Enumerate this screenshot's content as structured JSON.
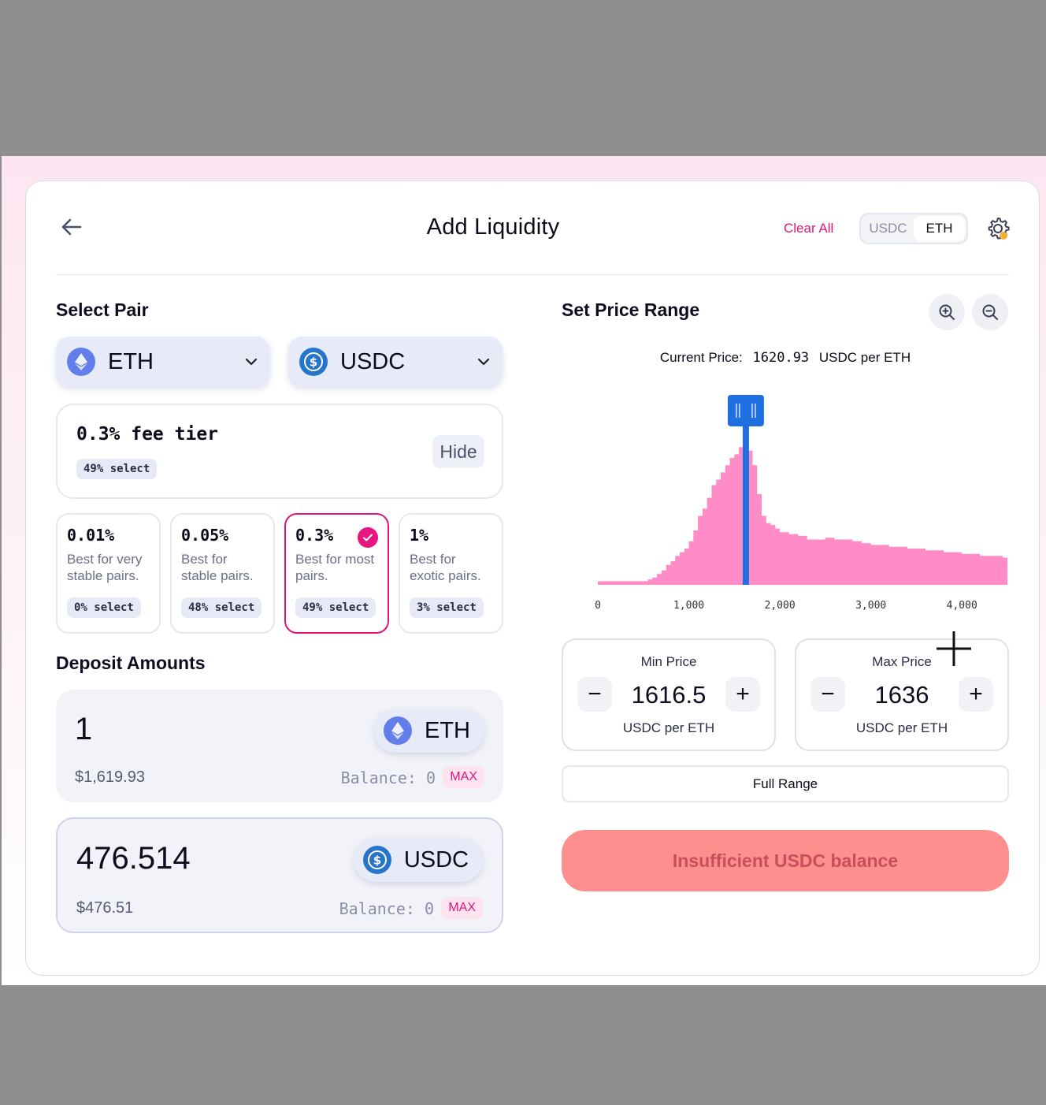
{
  "header": {
    "title": "Add Liquidity",
    "clear_all": "Clear All",
    "denomination": {
      "options": [
        "USDC",
        "ETH"
      ],
      "selected": "ETH"
    }
  },
  "pair": {
    "heading": "Select Pair",
    "token_a": "ETH",
    "token_b": "USDC"
  },
  "fee": {
    "selected_label": "0.3% fee tier",
    "selected_pill": "49% select",
    "hide_label": "Hide",
    "tiers": [
      {
        "pct": "0.01%",
        "desc": "Best for very stable pairs.",
        "pill": "0% select",
        "selected": false
      },
      {
        "pct": "0.05%",
        "desc": "Best for stable pairs.",
        "pill": "48% select",
        "selected": false
      },
      {
        "pct": "0.3%",
        "desc": "Best for most pairs.",
        "pill": "49% select",
        "selected": true
      },
      {
        "pct": "1%",
        "desc": "Best for exotic pairs.",
        "pill": "3% select",
        "selected": false
      }
    ]
  },
  "deposit": {
    "heading": "Deposit Amounts",
    "eth": {
      "amount": "1",
      "usd": "$1,619.93",
      "balance": "Balance: 0",
      "max": "MAX",
      "token": "ETH"
    },
    "usdc": {
      "amount": "476.514",
      "usd": "$476.51",
      "balance": "Balance: 0",
      "max": "MAX",
      "token": "USDC"
    }
  },
  "range": {
    "heading": "Set Price Range",
    "current_price_label": "Current Price:",
    "current_price": "1620.93",
    "current_price_unit": "USDC per ETH",
    "min": {
      "label": "Min Price",
      "value": "1616.5",
      "unit": "USDC per ETH",
      "minus": "−",
      "plus": "+"
    },
    "max": {
      "label": "Max Price",
      "value": "1636",
      "unit": "USDC per ETH",
      "minus": "−",
      "plus": "+"
    },
    "full_range": "Full Range",
    "cta": "Insufficient USDC balance"
  },
  "colors": {
    "accent": "#e0157a",
    "histogram": "#ff8cc6",
    "range_handle": "#1f6fe0",
    "cta_bg": "#fe8f8f",
    "eth": "#627eea",
    "usdc": "#2775ca"
  },
  "chart_data": {
    "type": "area",
    "x_ticks": [
      "0",
      "1,000",
      "2,000",
      "3,000",
      "4,000"
    ],
    "xlim": [
      0,
      4500
    ],
    "x": [
      0,
      100,
      200,
      300,
      400,
      500,
      550,
      600,
      650,
      700,
      750,
      800,
      850,
      900,
      950,
      1000,
      1050,
      1100,
      1150,
      1200,
      1250,
      1300,
      1350,
      1400,
      1450,
      1500,
      1550,
      1600,
      1650,
      1700,
      1750,
      1800,
      1850,
      1900,
      1950,
      2000,
      2100,
      2200,
      2300,
      2400,
      2500,
      2600,
      2700,
      2800,
      2900,
      3000,
      3200,
      3400,
      3600,
      3800,
      4000,
      4200,
      4450
    ],
    "y": [
      2,
      2,
      2,
      2,
      2,
      2,
      3,
      4,
      6,
      8,
      11,
      13,
      16,
      18,
      20,
      24,
      30,
      38,
      42,
      48,
      55,
      58,
      62,
      66,
      70,
      72,
      76,
      80,
      74,
      66,
      50,
      38,
      34,
      33,
      31,
      29,
      28,
      27,
      25,
      25,
      26,
      25,
      25,
      24,
      23,
      22,
      21,
      20,
      19,
      18,
      17,
      16,
      15
    ],
    "ylim": [
      0,
      100
    ],
    "selected_range": [
      1616.5,
      1636
    ],
    "current_price": 1620.93
  }
}
